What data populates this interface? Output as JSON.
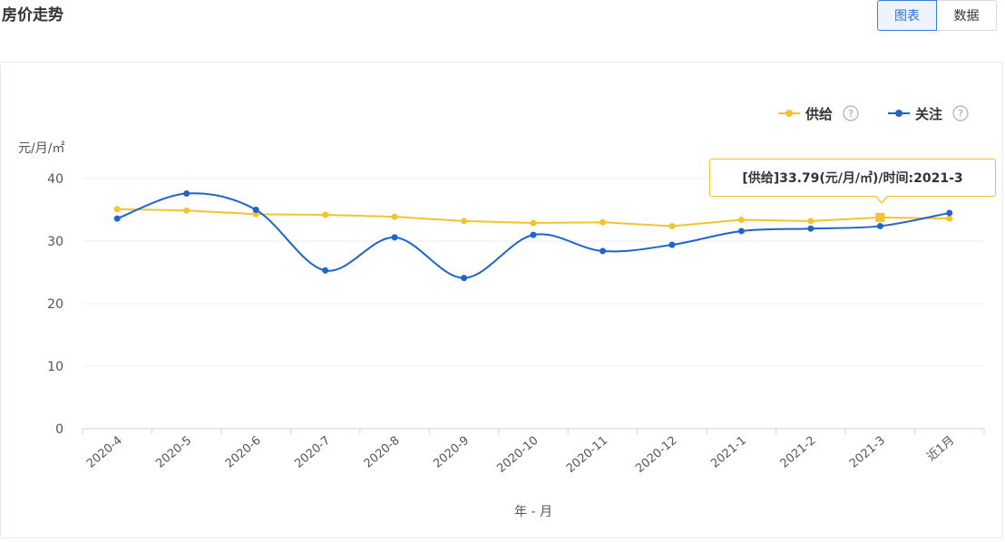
{
  "page": {
    "title": "房价走势",
    "toggle_chart": "图表",
    "toggle_data": "数据"
  },
  "tooltip": {
    "text": "[供给]33.79(元/月/㎡)/时间:2021-3"
  },
  "colors": {
    "supply": "#f4c430",
    "attention": "#1f64c8",
    "grid": "#e9edf3",
    "axis": "#c9d6e6"
  },
  "chart_data": {
    "type": "line",
    "title": "房价走势",
    "xlabel": "年 - 月",
    "ylabel": "元/月/㎡",
    "ylim": [
      0,
      40
    ],
    "yticks": [
      0,
      10,
      20,
      30,
      40
    ],
    "grid": true,
    "legend_position": "top-right",
    "legend_help": "?",
    "categories": [
      "2020-4",
      "2020-5",
      "2020-6",
      "2020-7",
      "2020-8",
      "2020-9",
      "2020-10",
      "2020-11",
      "2020-12",
      "2021-1",
      "2021-2",
      "2021-3",
      "近1月"
    ],
    "series": [
      {
        "name": "供给",
        "color": "#f4c430",
        "smooth": false,
        "values": [
          35.1,
          34.9,
          34.3,
          34.2,
          33.9,
          33.2,
          32.9,
          33.0,
          32.4,
          33.4,
          33.2,
          33.79,
          33.6
        ]
      },
      {
        "name": "关注",
        "color": "#1f64c8",
        "smooth": true,
        "values": [
          33.6,
          37.6,
          35.0,
          25.3,
          30.6,
          24.1,
          31.0,
          28.4,
          29.4,
          31.6,
          32.0,
          32.4,
          34.5
        ]
      }
    ],
    "highlight": {
      "series": 0,
      "index": 11
    }
  }
}
